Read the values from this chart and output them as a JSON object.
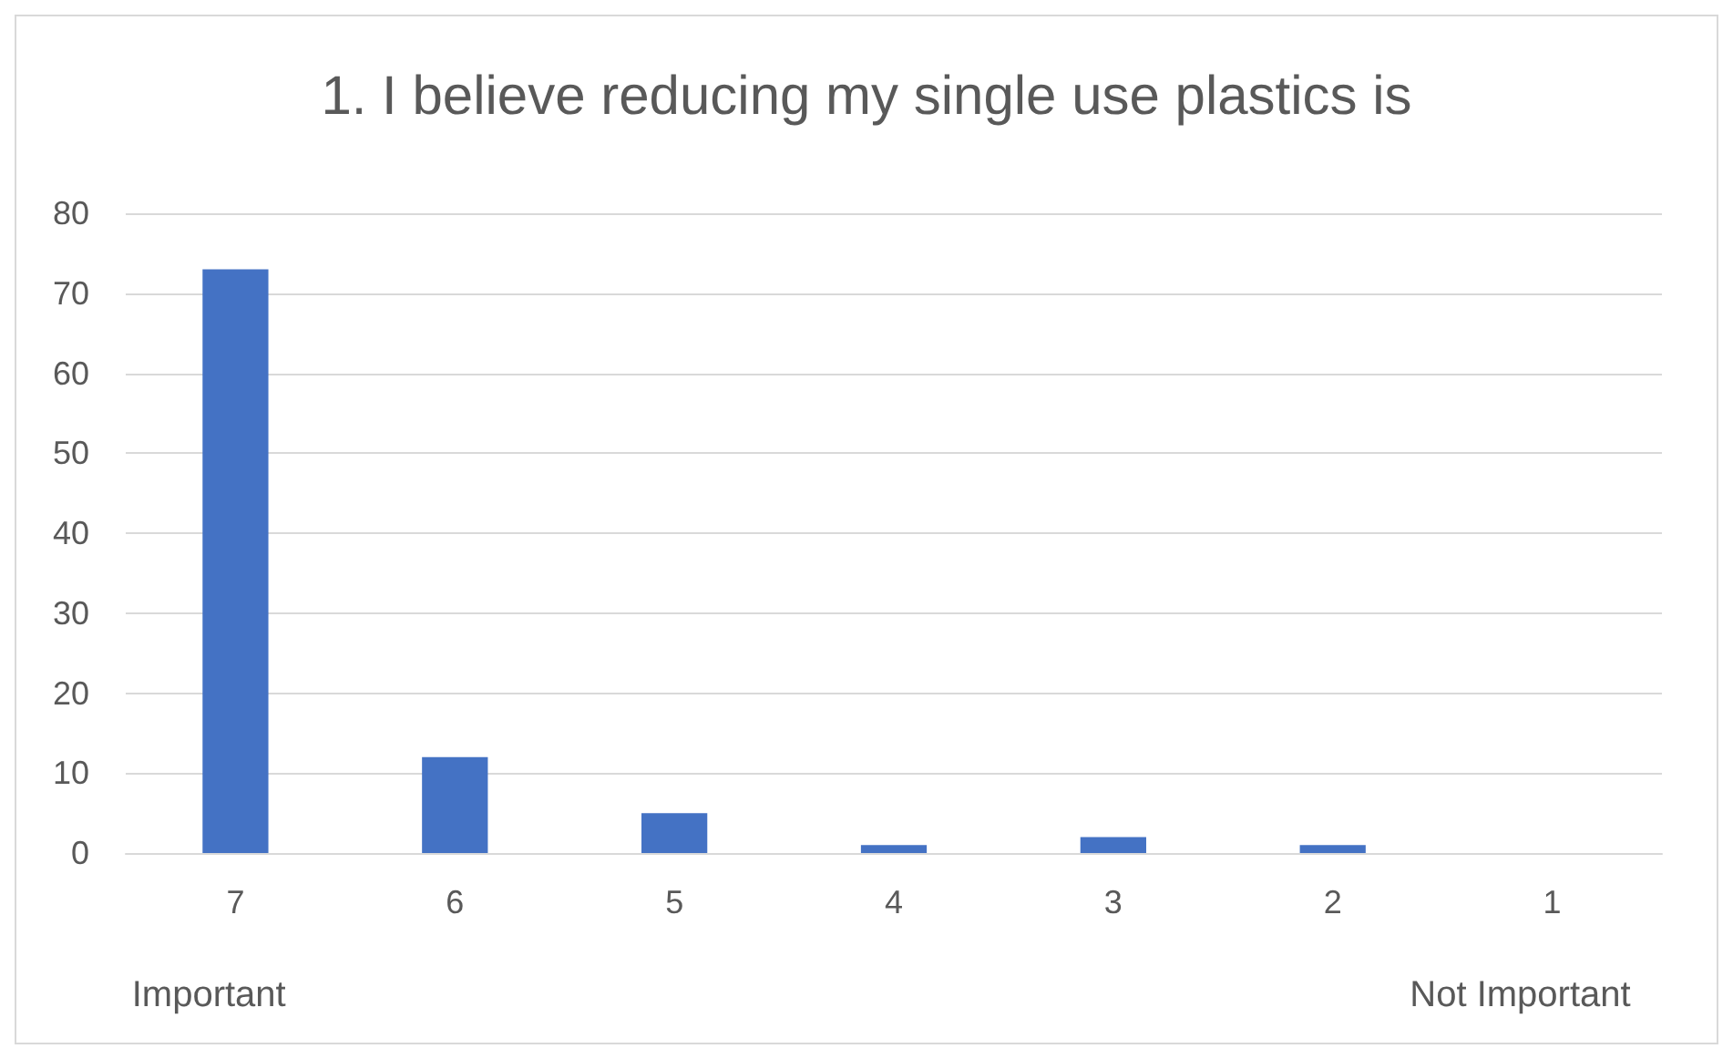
{
  "chart_data": {
    "type": "bar",
    "title": "1. I believe reducing my single use plastics is",
    "categories": [
      "7",
      "6",
      "5",
      "4",
      "3",
      "2",
      "1"
    ],
    "values": [
      73,
      12,
      5,
      1,
      2,
      1,
      0
    ],
    "color": "#4472c4",
    "ylim": [
      0,
      80
    ],
    "yticks": [
      0,
      10,
      20,
      30,
      40,
      50,
      60,
      70,
      80
    ],
    "grid": "y",
    "annotations": [
      "Important",
      "Not Important"
    ]
  }
}
